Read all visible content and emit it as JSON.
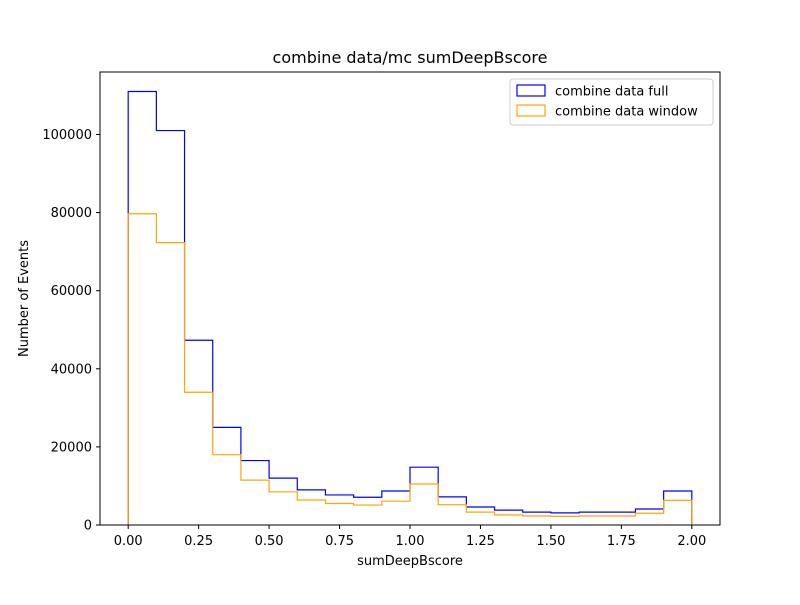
{
  "chart_data": {
    "type": "histogram",
    "title": "combine data/mc sumDeepBscore",
    "xlabel": "sumDeepBscore",
    "ylabel": "Number of Events",
    "xlim": [
      -0.1,
      2.1
    ],
    "ylim": [
      0,
      116000
    ],
    "grid": false,
    "legend_position": "top-right",
    "bin_edges": [
      0.0,
      0.1,
      0.2,
      0.3,
      0.4,
      0.5,
      0.6,
      0.7,
      0.8,
      0.9,
      1.0,
      1.1,
      1.2,
      1.3,
      1.4,
      1.5,
      1.6,
      1.7,
      1.8,
      1.9,
      2.0
    ],
    "x_ticks": [
      {
        "value": 0.0,
        "label": "0.00"
      },
      {
        "value": 0.25,
        "label": "0.25"
      },
      {
        "value": 0.5,
        "label": "0.50"
      },
      {
        "value": 0.75,
        "label": "0.75"
      },
      {
        "value": 1.0,
        "label": "1.00"
      },
      {
        "value": 1.25,
        "label": "1.25"
      },
      {
        "value": 1.5,
        "label": "1.50"
      },
      {
        "value": 1.75,
        "label": "1.75"
      },
      {
        "value": 2.0,
        "label": "2.00"
      }
    ],
    "y_ticks": [
      {
        "value": 0,
        "label": "0"
      },
      {
        "value": 20000,
        "label": "20000"
      },
      {
        "value": 40000,
        "label": "40000"
      },
      {
        "value": 60000,
        "label": "60000"
      },
      {
        "value": 80000,
        "label": "80000"
      },
      {
        "value": 100000,
        "label": "100000"
      }
    ],
    "series": [
      {
        "name": "combine data full",
        "color": "#0000ff",
        "values": [
          111000,
          101000,
          47300,
          25000,
          16500,
          12000,
          9000,
          7700,
          7100,
          8700,
          14800,
          7200,
          4600,
          3800,
          3300,
          3100,
          3300,
          3300,
          4100,
          8700
        ]
      },
      {
        "name": "combine data window",
        "color": "#ffa500",
        "values": [
          79700,
          72300,
          34000,
          18000,
          11500,
          8500,
          6400,
          5500,
          5100,
          6100,
          10500,
          5200,
          3300,
          2600,
          2300,
          2200,
          2300,
          2300,
          3000,
          6300
        ]
      }
    ]
  }
}
